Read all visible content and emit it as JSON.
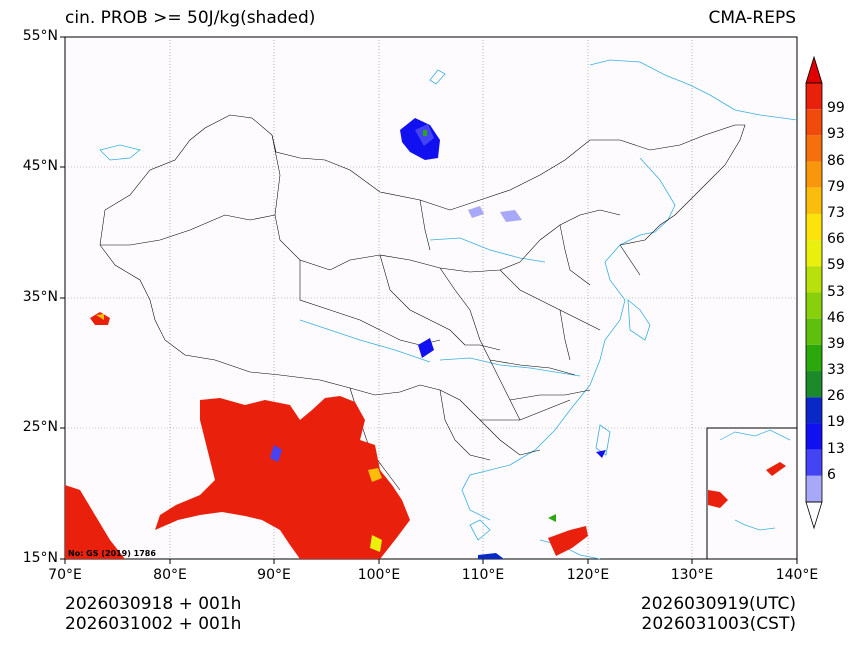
{
  "title": {
    "left": "cin. PROB >= 50J/kg(shaded)",
    "right": "CMA-REPS"
  },
  "y_axis_labels": [
    "55°N",
    "45°N",
    "35°N",
    "25°N",
    "15°N"
  ],
  "x_axis_labels": [
    "70°E",
    "80°E",
    "90°E",
    "100°E",
    "110°E",
    "120°E",
    "130°E",
    "140°E"
  ],
  "footer": {
    "left_line1": "2026030918  +  001h",
    "left_line2": "2026031002  +  001h",
    "right_line1": "2026030919(UTC)",
    "right_line2": "2026031003(CST)"
  },
  "map_note": "No: GS (2019) 1786",
  "colorbar": {
    "labels": [
      "99",
      "93",
      "86",
      "79",
      "73",
      "66",
      "59",
      "53",
      "46",
      "39",
      "33",
      "26",
      "19",
      "13",
      "6"
    ],
    "colors": [
      "#e8200c",
      "#f04a0c",
      "#f5700c",
      "#f8960c",
      "#fbbd0c",
      "#fde20c",
      "#e8f00c",
      "#b8e00c",
      "#88d00c",
      "#5ec00c",
      "#2aa80c",
      "#1a8a2a",
      "#0a28c8",
      "#1010f0",
      "#4444f5",
      "#a8a8f8"
    ],
    "over_color": "#e00000",
    "under_color": "#ffffff"
  },
  "colors": {
    "land_bg": "#fdfbfd",
    "rivers": "#3ab0e0",
    "borders": "#000000",
    "grid": "#888888"
  }
}
